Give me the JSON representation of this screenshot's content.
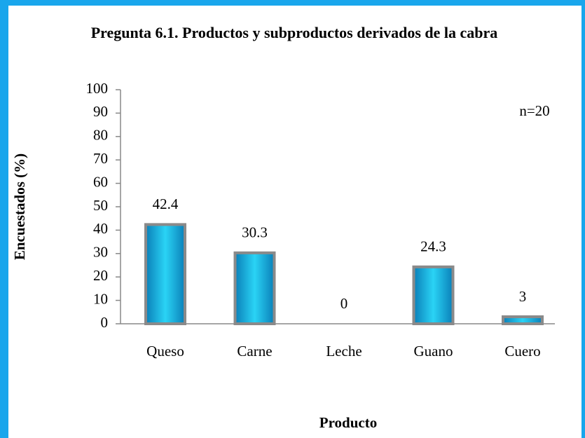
{
  "chart_data": {
    "type": "bar",
    "title": "Pregunta 6.1. Productos y subproductos derivados de la cabra",
    "annotation": "n=20",
    "y_label": "Encuestados (%)",
    "x_label": "Producto",
    "categories": [
      "Queso",
      "Carne",
      "Leche",
      "Guano",
      "Cuero"
    ],
    "values": [
      42.4,
      30.3,
      0,
      24.3,
      3
    ],
    "color": "#1ab8e0",
    "ylim": [
      0,
      100
    ],
    "yticks": [
      0,
      10,
      20,
      30,
      40,
      50,
      60,
      70,
      80,
      90,
      100
    ]
  }
}
